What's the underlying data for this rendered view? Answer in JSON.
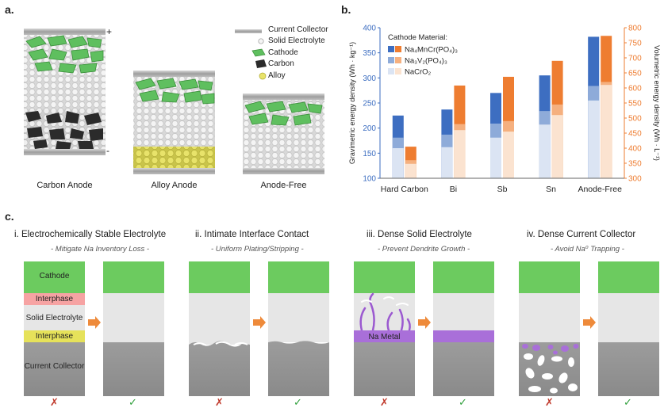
{
  "panel_a": {
    "letter": "a.",
    "plus": "+",
    "minus": "-",
    "cells": [
      "Carbon Anode",
      "Alloy Anode",
      "Anode-Free"
    ],
    "legend": [
      "Current Collector",
      "Solid Electrolyte",
      "Cathode",
      "Carbon",
      "Alloy"
    ]
  },
  "panel_b": {
    "letter": "b.",
    "chart_data": {
      "type": "bar",
      "categories": [
        "Hard Carbon",
        "Bi",
        "Sb",
        "Sn",
        "Anode-Free"
      ],
      "legend_title": "Cathode Material:",
      "ylabel_left": "Gravimetric energy density (Wh · kg⁻¹)",
      "ylabel_right": "Volumetric energy density (Wh · L⁻¹)",
      "ylim_left": [
        100,
        400
      ],
      "ylim_right": [
        300,
        800
      ],
      "yticks_left": [
        100,
        150,
        200,
        250,
        300,
        350,
        400
      ],
      "yticks_right": [
        300,
        350,
        400,
        450,
        500,
        550,
        600,
        650,
        700,
        750,
        800
      ],
      "series": [
        {
          "name": "Na₄MnCr(PO₄)₃",
          "gravimetric": [
            225,
            237,
            270,
            305,
            382
          ],
          "volumetric": [
            405,
            608,
            637,
            690,
            773
          ],
          "color_grav": "#3d6ec1",
          "color_vol": "#ee7d31"
        },
        {
          "name": "Na₃V₂(PO₄)₃",
          "gravimetric": [
            181,
            187,
            209,
            234,
            284
          ],
          "volumetric": [
            360,
            480,
            490,
            545,
            620
          ],
          "color_grav": "#8eabd9",
          "color_vol": "#f5b07f"
        },
        {
          "name": "NaCrO₂",
          "gravimetric": [
            160,
            162,
            181,
            207,
            255
          ],
          "volumetric": [
            348,
            460,
            455,
            510,
            610
          ],
          "color_grav": "#dbe4f3",
          "color_vol": "#fbe3d0"
        }
      ]
    }
  },
  "panel_c": {
    "letter": "c.",
    "sections": [
      {
        "title": "i. Electrochemically Stable Electrolyte",
        "subtitle": "- Mitigate Na Inventory Loss -"
      },
      {
        "title": "ii. Intimate Interface Contact",
        "subtitle": "- Uniform Plating/Stripping -"
      },
      {
        "title": "iii. Dense Solid Electrolyte",
        "subtitle": "- Prevent Dendrite Growth -"
      },
      {
        "title": "iv. Dense Current Collector",
        "subtitle": "- Avoid Na⁰ Trapping -"
      }
    ],
    "layers": {
      "cathode": "Cathode",
      "interphase_top": "Interphase",
      "solid_electrolyte": "Solid Electrolyte",
      "interphase_bottom": "Interphase",
      "current_collector": "Current Collector",
      "na_metal": "Na Metal"
    },
    "bad_mark": "✗",
    "good_mark": "✓"
  }
}
